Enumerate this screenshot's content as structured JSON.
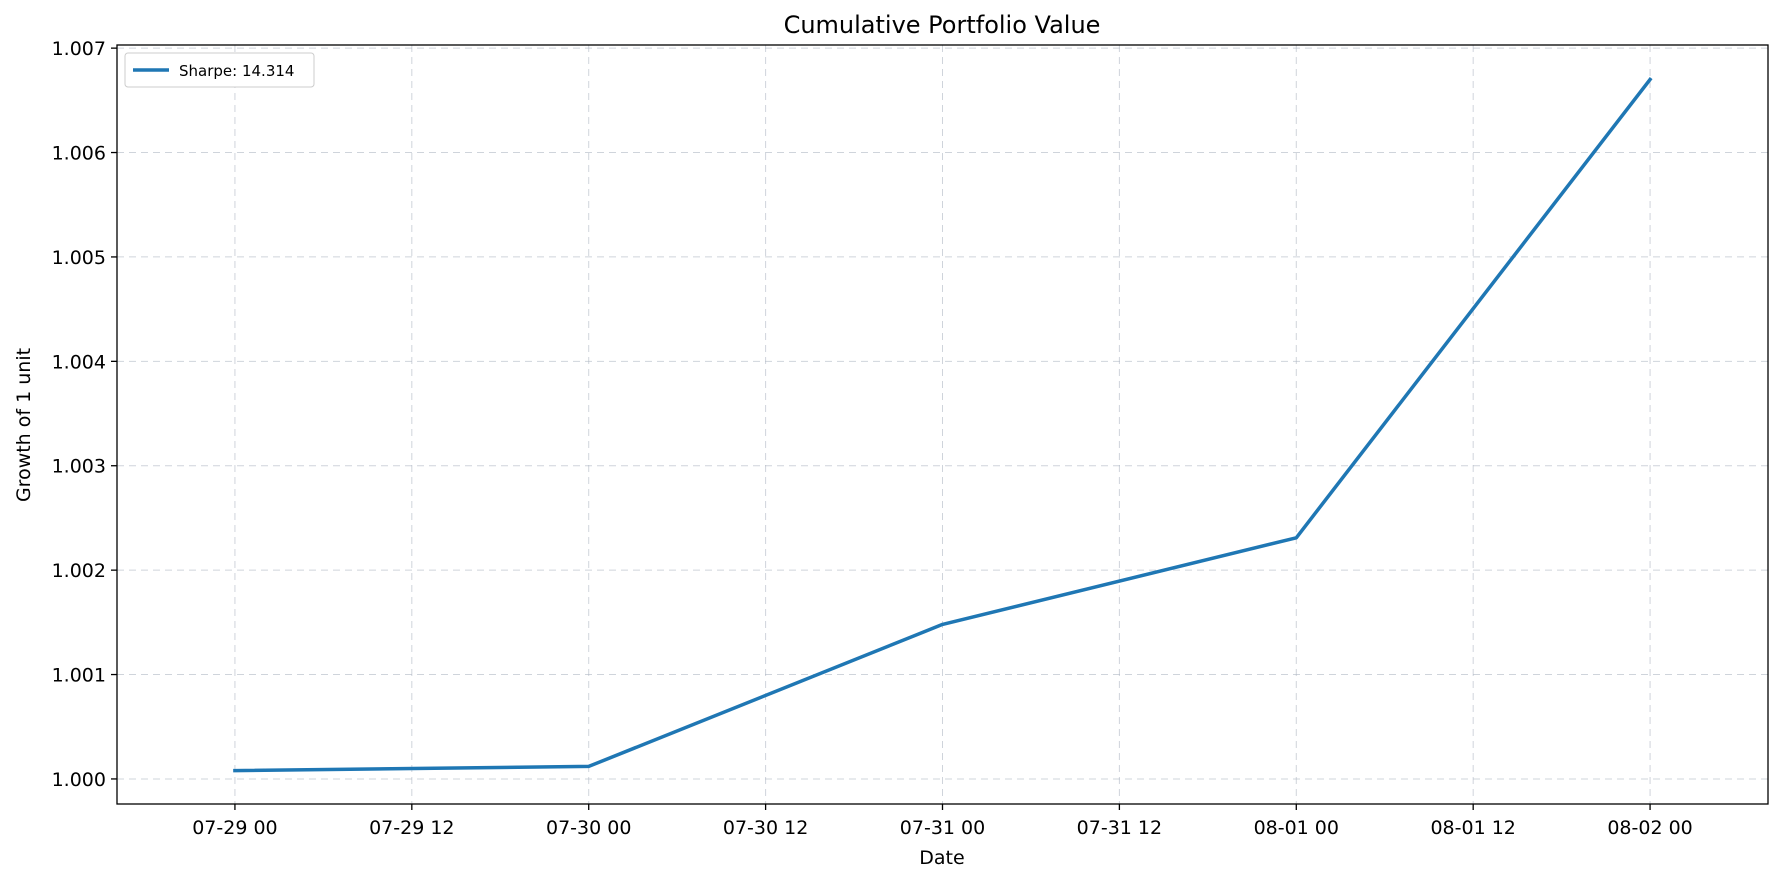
{
  "chart_data": {
    "type": "line",
    "title": "Cumulative Portfolio Value",
    "xlabel": "Date",
    "ylabel": "Growth of 1 unit",
    "x_tick_labels": [
      "07-29 00",
      "07-29 12",
      "07-30 00",
      "07-30 12",
      "07-31 00",
      "07-31 12",
      "08-01 00",
      "08-01 12",
      "08-02 00"
    ],
    "y_tick_labels": [
      "1.000",
      "1.001",
      "1.002",
      "1.003",
      "1.004",
      "1.005",
      "1.006",
      "1.007"
    ],
    "y_ticks": [
      1.0,
      1.001,
      1.002,
      1.003,
      1.004,
      1.005,
      1.006,
      1.007
    ],
    "xlim": [
      "07-28 16:00",
      "08-02 08:00"
    ],
    "ylim": [
      0.99976,
      1.00703
    ],
    "grid": true,
    "legend_position": "upper-left",
    "series": [
      {
        "name": "Sharpe: 14.314",
        "color": "#1f77b4",
        "x": [
          "07-29 00",
          "07-30 00",
          "07-31 00",
          "08-01 00",
          "08-02 00"
        ],
        "y": [
          1.00008,
          1.00012,
          1.00148,
          1.00231,
          1.0067
        ]
      }
    ]
  }
}
